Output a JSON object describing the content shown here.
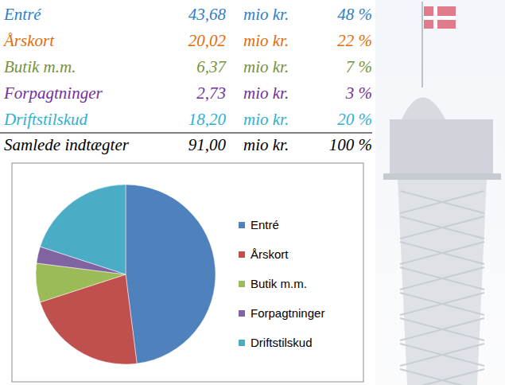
{
  "table": {
    "rows": [
      {
        "cells": [
          "Entré",
          "43,68",
          "mio kr.",
          "48 %"
        ],
        "color": "#2f7fc8"
      },
      {
        "cells": [
          "Årskort",
          "20,02",
          "mio kr.",
          "22 %"
        ],
        "color": "#e36c09"
      },
      {
        "cells": [
          "Butik m.m.",
          "6,37",
          "mio kr.",
          "7 %"
        ],
        "color": "#76923c"
      },
      {
        "cells": [
          "Forpagtninger",
          "2,73",
          "mio kr.",
          "3 %"
        ],
        "color": "#7030a0"
      },
      {
        "cells": [
          "Driftstilskud",
          "18,20",
          "mio kr.",
          "20 %"
        ],
        "color": "#2fb0d0"
      }
    ],
    "total": {
      "cells": [
        "Samlede indtægter",
        "91,00",
        "mio kr.",
        "100 %"
      ],
      "color": "#000000"
    }
  },
  "chart_data": {
    "type": "pie",
    "categories": [
      "Entré",
      "Årskort",
      "Butik m.m.",
      "Forpagtninger",
      "Driftstilskud"
    ],
    "values": [
      43.68,
      20.02,
      6.37,
      2.73,
      18.2
    ],
    "colors": [
      "#4f81bd",
      "#c0504d",
      "#9bbb59",
      "#8064a2",
      "#4bacc6"
    ],
    "legend": "right"
  }
}
